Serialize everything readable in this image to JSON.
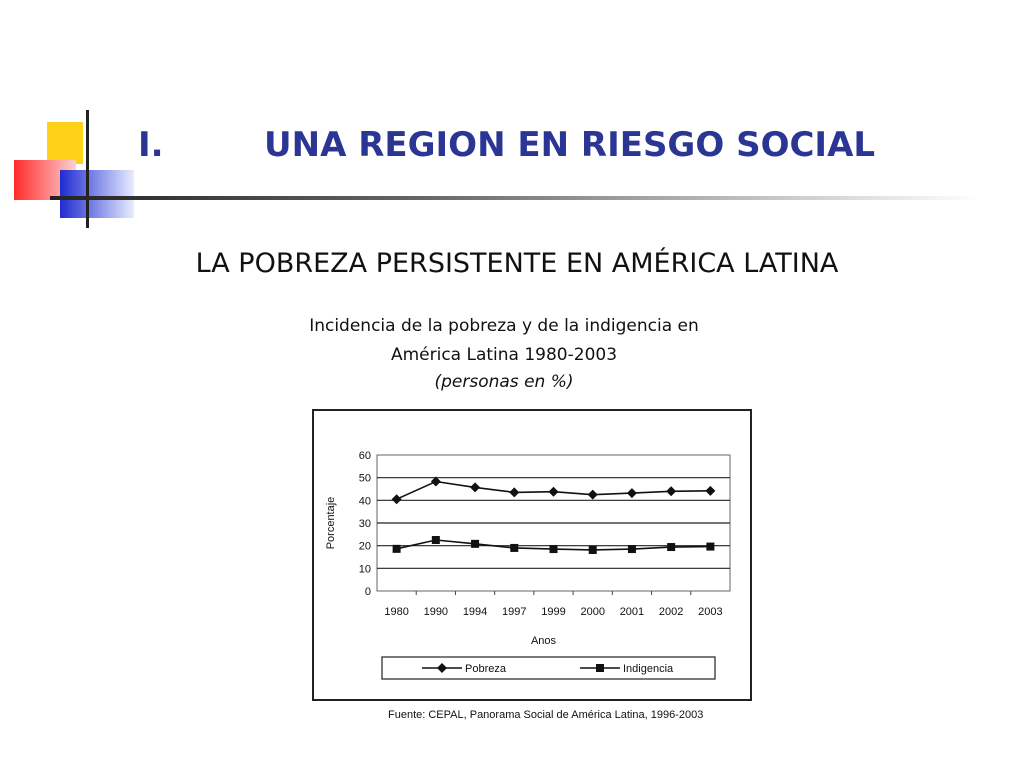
{
  "slide": {
    "number": "I.",
    "title": "UNA REGION EN RIESGO SOCIAL",
    "subtitle": "LA POBREZA PERSISTENTE EN AMÉRICA LATINA",
    "caption_line1": "Incidencia de la pobreza y de la indigencia en",
    "caption_line2": "América Latina 1980-2003",
    "caption_line3": "(personas en %)",
    "source": "Fuente: CEPAL, Panorama Social de América Latina, 1996-2003",
    "colors": {
      "title": "#2b3694",
      "accent_yellow": "#ffd21a",
      "accent_blue": "#2a35c8",
      "accent_red": "#ff4a4a"
    }
  },
  "chart_data": {
    "type": "line",
    "categories": [
      "1980",
      "1990",
      "1994",
      "1997",
      "1999",
      "2000",
      "2001",
      "2002",
      "2003"
    ],
    "series": [
      {
        "name": "Pobreza",
        "marker": "diamond",
        "values": [
          40.5,
          48.3,
          45.7,
          43.5,
          43.8,
          42.5,
          43.2,
          44.0,
          44.2
        ]
      },
      {
        "name": "Indigencia",
        "marker": "square",
        "values": [
          18.6,
          22.5,
          20.8,
          19.0,
          18.5,
          18.1,
          18.5,
          19.4,
          19.6
        ]
      }
    ],
    "xlabel": "Anos",
    "ylabel": "Porcentaje",
    "ylim": [
      0,
      60
    ],
    "yticks": [
      "0",
      "10",
      "20",
      "30",
      "40",
      "50",
      "60"
    ],
    "grid": true,
    "legend_position": "bottom"
  }
}
